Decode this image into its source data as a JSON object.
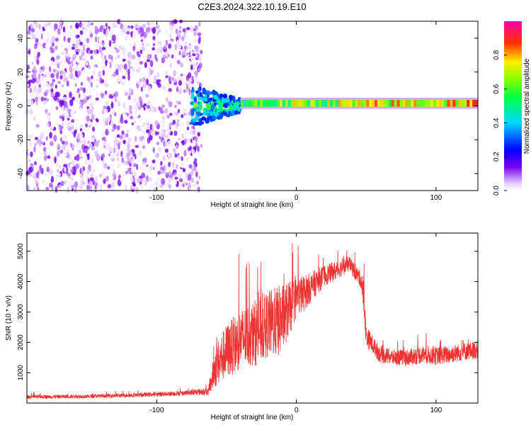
{
  "title": "C2E3.2024.322.10.19.E10",
  "chart_data": [
    {
      "type": "heatmap",
      "xlabel": "Height of straight line (km)",
      "ylabel": "Frequency (Hz)",
      "xlim": [
        -193,
        130
      ],
      "ylim": [
        -50,
        50
      ],
      "xticks": [
        -100,
        0,
        100
      ],
      "yticks": [
        -40,
        -20,
        0,
        20,
        40
      ],
      "colorbar": {
        "label": "Normalized spectral amplitude",
        "range": [
          0,
          1
        ],
        "ticks": [
          "0.0",
          "0.2",
          "0.4",
          "0.6",
          "0.8"
        ],
        "colormap": "rainbow (white-purple-blue-cyan-green-yellow-red-magenta)"
      },
      "regions": [
        {
          "name": "broadband noise",
          "x_range": [
            -193,
            -68
          ],
          "freq_range": [
            -50,
            50
          ],
          "amplitude": [
            0.0,
            0.15
          ]
        },
        {
          "name": "signal onset",
          "x_range": [
            -75,
            -40
          ],
          "freq_range": [
            -10,
            12
          ],
          "amplitude": [
            0.1,
            0.55
          ]
        },
        {
          "name": "narrow doppler line",
          "x_range": [
            -40,
            130
          ],
          "center_freq": 1.5,
          "width": 4,
          "amplitude": [
            0.4,
            0.95
          ]
        }
      ]
    },
    {
      "type": "line",
      "xlabel": "Height of straight line (km)",
      "ylabel": "SNR (10 * v/v)",
      "xlim": [
        -193,
        130
      ],
      "ylim": [
        0,
        5600
      ],
      "xticks": [
        -100,
        0,
        100
      ],
      "yticks": [
        1000,
        2000,
        3000,
        4000,
        5000
      ],
      "series": [
        {
          "color": "#ee3333",
          "x": [
            -193,
            -150,
            -110,
            -80,
            -63,
            -58,
            -50,
            -40,
            -30,
            -20,
            -12,
            -5,
            0,
            5,
            10,
            20,
            30,
            38,
            42,
            46,
            48,
            50,
            55,
            60,
            70,
            80,
            90,
            100,
            110,
            120,
            130
          ],
          "y": [
            200,
            220,
            270,
            330,
            380,
            1200,
            1700,
            2100,
            2300,
            2600,
            2700,
            3100,
            3500,
            3600,
            3800,
            4200,
            4400,
            4600,
            4300,
            4100,
            3600,
            2200,
            1900,
            1600,
            1500,
            1500,
            1600,
            1550,
            1600,
            1700,
            1750
          ],
          "noise": [
            60,
            60,
            70,
            80,
            120,
            700,
            900,
            1000,
            1100,
            1100,
            1200,
            900,
            700,
            600,
            500,
            350,
            300,
            250,
            250,
            300,
            600,
            350,
            300,
            280,
            260,
            280,
            300,
            300,
            300,
            300,
            300
          ]
        }
      ]
    }
  ],
  "colors": {
    "line": "#ee3333",
    "frame": "#000000"
  }
}
